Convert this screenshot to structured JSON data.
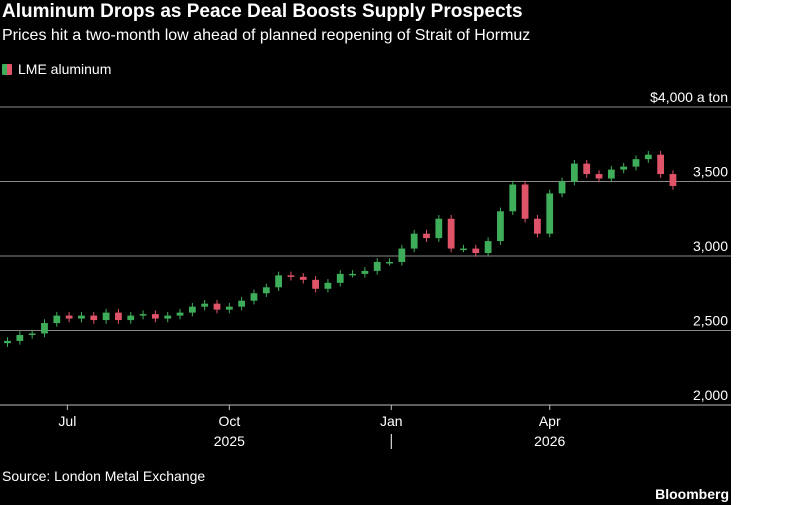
{
  "header": {
    "title": "Aluminum Drops as Peace Deal Boosts Supply Prospects",
    "subtitle": "Prices hit a two-month low ahead of planned reopening of Strait of Hormuz"
  },
  "footer": {
    "source": "Source: London Metal Exchange",
    "brand": "Bloomberg"
  },
  "colors": {
    "background": "#000000",
    "up": "#3fae5a",
    "down": "#e0546a",
    "grid": "#8a8a8a",
    "text": "#ffffff"
  },
  "chart_data": {
    "type": "candlestick",
    "legend": [
      "LME aluminum"
    ],
    "unit_label": "$4,000 a ton",
    "y_ticks": [
      2000,
      2500,
      3000,
      3500,
      4000
    ],
    "y_tick_labels": [
      "2,000",
      "2,500",
      "3,000",
      "3,500",
      ""
    ],
    "ylim": [
      2000,
      4000
    ],
    "grid": true,
    "x_ticks": [
      {
        "date": "2025-07-01",
        "label": "Jul"
      },
      {
        "date": "2025-10-01",
        "label": "Oct"
      },
      {
        "date": "2026-01-01",
        "label": "Jan"
      },
      {
        "date": "2026-04-01",
        "label": "Apr"
      }
    ],
    "year_labels": [
      {
        "date": "2025-10-01",
        "label": "2025"
      },
      {
        "date": "2026-04-01",
        "label": "2026"
      }
    ],
    "year_divider": "2026-01-01",
    "xlim": [
      "2025-05-26",
      "2026-06-14"
    ],
    "series": [
      {
        "name": "LME aluminum",
        "points": [
          [
            "2025-05-28",
            2430
          ],
          [
            "2025-06-04",
            2470
          ],
          [
            "2025-06-11",
            2480
          ],
          [
            "2025-06-18",
            2550
          ],
          [
            "2025-06-25",
            2600
          ],
          [
            "2025-07-02",
            2580
          ],
          [
            "2025-07-09",
            2600
          ],
          [
            "2025-07-16",
            2570
          ],
          [
            "2025-07-23",
            2620
          ],
          [
            "2025-07-30",
            2570
          ],
          [
            "2025-08-06",
            2600
          ],
          [
            "2025-08-13",
            2610
          ],
          [
            "2025-08-20",
            2580
          ],
          [
            "2025-08-27",
            2600
          ],
          [
            "2025-09-03",
            2620
          ],
          [
            "2025-09-10",
            2660
          ],
          [
            "2025-09-17",
            2680
          ],
          [
            "2025-09-24",
            2640
          ],
          [
            "2025-10-01",
            2660
          ],
          [
            "2025-10-08",
            2700
          ],
          [
            "2025-10-15",
            2750
          ],
          [
            "2025-10-22",
            2790
          ],
          [
            "2025-10-29",
            2870
          ],
          [
            "2025-11-05",
            2860
          ],
          [
            "2025-11-12",
            2840
          ],
          [
            "2025-11-19",
            2780
          ],
          [
            "2025-11-26",
            2820
          ],
          [
            "2025-12-03",
            2880
          ],
          [
            "2025-12-10",
            2880
          ],
          [
            "2025-12-17",
            2900
          ],
          [
            "2025-12-24",
            2960
          ],
          [
            "2025-12-31",
            2960
          ],
          [
            "2026-01-07",
            3050
          ],
          [
            "2026-01-14",
            3150
          ],
          [
            "2026-01-21",
            3120
          ],
          [
            "2026-01-28",
            3250
          ],
          [
            "2026-02-04",
            3050
          ],
          [
            "2026-02-11",
            3050
          ],
          [
            "2026-02-18",
            3020
          ],
          [
            "2026-02-25",
            3100
          ],
          [
            "2026-03-04",
            3300
          ],
          [
            "2026-03-11",
            3480
          ],
          [
            "2026-03-18",
            3250
          ],
          [
            "2026-03-25",
            3150
          ],
          [
            "2026-04-01",
            3420
          ],
          [
            "2026-04-08",
            3500
          ],
          [
            "2026-04-15",
            3620
          ],
          [
            "2026-04-22",
            3550
          ],
          [
            "2026-04-29",
            3520
          ],
          [
            "2026-05-06",
            3580
          ],
          [
            "2026-05-13",
            3600
          ],
          [
            "2026-05-20",
            3650
          ],
          [
            "2026-05-27",
            3680
          ],
          [
            "2026-06-03",
            3550
          ],
          [
            "2026-06-10",
            3470
          ]
        ]
      }
    ]
  }
}
